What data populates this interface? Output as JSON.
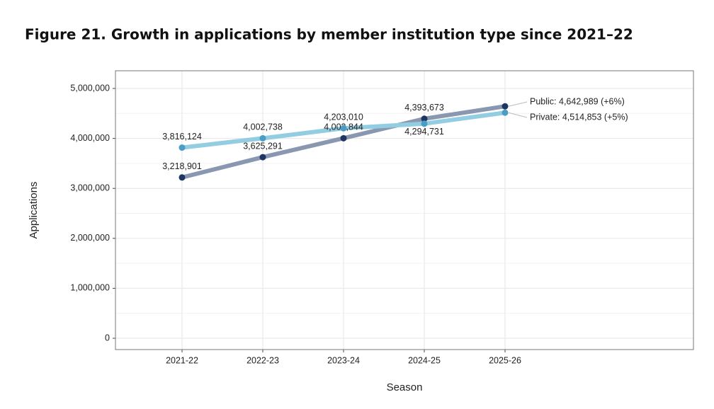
{
  "chart_data": {
    "type": "line",
    "title": "Figure 21. Growth in applications by member institution type since 2021–22",
    "x_label": "Season",
    "y_label": "Applications",
    "categories": [
      "2021-22",
      "2022-23",
      "2023-24",
      "2024-25",
      "2025-26"
    ],
    "series": [
      {
        "name": "Public",
        "color": "#8a97b0",
        "point_color": "#1e3462",
        "values": [
          3218901,
          3625291,
          4003844,
          4393673,
          4642989
        ],
        "value_labels": [
          "3,218,901",
          "3,625,291",
          "4,003,844",
          "4,393,673",
          null
        ]
      },
      {
        "name": "Private",
        "color": "#93cde2",
        "point_color": "#4a9dc5",
        "values": [
          3816124,
          4002738,
          4203010,
          4294731,
          4514853
        ],
        "value_labels": [
          "3,816,124",
          "4,002,738",
          "4,203,010",
          "4,294,731",
          null
        ]
      }
    ],
    "annotations": [
      "Public: 4,642,989 (+6%)",
      "Private: 4,514,853 (+5%)"
    ],
    "ylim": [
      -226000,
      5354000
    ],
    "yticks": [
      0,
      {
        "value": 1000000,
        "label": "1,000,000"
      },
      {
        "value": 2000000,
        "label": "2,000,000"
      },
      {
        "value": 3000000,
        "label": "3,000,000"
      },
      {
        "value": 4000000,
        "label": "4,000,000"
      },
      {
        "value": 5000000,
        "label": "5,000,000"
      }
    ],
    "grid": true
  }
}
